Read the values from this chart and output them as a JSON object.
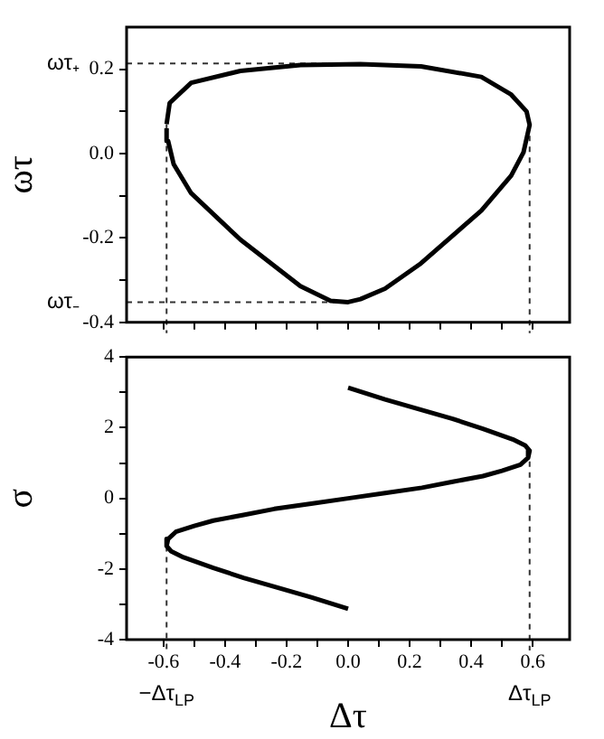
{
  "chart_data": [
    {
      "type": "line",
      "ylabel": "ωτ",
      "marker": "none",
      "tick_labels": "y",
      "xlim": [
        -0.72,
        0.72
      ],
      "ylim": [
        -0.4,
        0.3
      ],
      "xticks": [
        {
          "value": -0.6,
          "label": null
        },
        {
          "value": -0.5,
          "label": null
        },
        {
          "value": -0.4,
          "label": null
        },
        {
          "value": -0.3,
          "label": null
        },
        {
          "value": -0.2,
          "label": null
        },
        {
          "value": -0.1,
          "label": null
        },
        {
          "value": 0,
          "label": null
        },
        {
          "value": 0.1,
          "label": null
        },
        {
          "value": 0.2,
          "label": null
        },
        {
          "value": 0.3,
          "label": null
        },
        {
          "value": 0.4,
          "label": null
        },
        {
          "value": 0.5,
          "label": null
        },
        {
          "value": 0.6,
          "label": null
        }
      ],
      "yticks": [
        -0.4,
        {
          "value": -0.3,
          "label": null
        },
        -0.2,
        {
          "value": -0.1,
          "label": null
        },
        {
          "value": 0,
          "label": "0.0"
        },
        {
          "value": 0.1,
          "label": null
        },
        0.2
      ],
      "series": [
        {
          "color": "#000000",
          "x": [
            -0.59,
            -0.58,
            -0.51,
            -0.35,
            -0.155,
            0.04,
            0.237,
            0.433,
            0.53,
            0.58,
            0.59,
            0.57,
            0.53,
            0.433,
            0.237,
            0.12,
            0.04,
            0,
            -0.057,
            -0.155,
            -0.35,
            -0.51,
            -0.567,
            -0.585,
            -0.59
          ],
          "values": [
            0.07,
            0.12,
            0.168,
            0.196,
            0.21,
            0.212,
            0.207,
            0.182,
            0.14,
            0.1,
            0.068,
            0.003,
            -0.052,
            -0.135,
            -0.26,
            -0.32,
            -0.345,
            -0.352,
            -0.349,
            -0.314,
            -0.204,
            -0.094,
            -0.025,
            0.03,
            0.06
          ]
        }
      ],
      "ref_lines": [
        {
          "axis": "y",
          "value": 0.214,
          "label": "ωτ₊",
          "line_style": "dashed",
          "color": "#333333"
        },
        {
          "axis": "y",
          "value": -0.352,
          "label": "ωτ₋",
          "line_style": "dashed",
          "color": "#333333"
        },
        {
          "axis": "x",
          "value": -0.59,
          "line_style": "dashed",
          "color": "#333333"
        },
        {
          "axis": "x",
          "value": 0.59,
          "line_style": "dashed",
          "color": "#333333"
        }
      ]
    },
    {
      "type": "line",
      "xlabel": "Δτ",
      "ylabel": "σ",
      "marker": "none",
      "xlim": [
        -0.72,
        0.72
      ],
      "ylim": [
        -4,
        4
      ],
      "xticks": [
        -0.6,
        {
          "value": -0.5,
          "label": null
        },
        -0.4,
        {
          "value": -0.3,
          "label": null
        },
        -0.2,
        {
          "value": -0.1,
          "label": null
        },
        {
          "value": 0,
          "label": "0.0"
        },
        {
          "value": 0.1,
          "label": null
        },
        0.2,
        {
          "value": 0.3,
          "label": null
        },
        0.4,
        {
          "value": 0.5,
          "label": null
        },
        0.6
      ],
      "yticks": [
        -4,
        {
          "value": -3,
          "label": null
        },
        -2,
        {
          "value": -1,
          "label": null
        },
        0,
        {
          "value": 1,
          "label": null
        },
        2,
        {
          "value": 3,
          "label": null
        },
        4
      ],
      "series": [
        {
          "color": "#000000",
          "x": [
            0,
            0.12,
            0.24,
            0.34,
            0.438,
            0.535,
            0.575,
            0.59,
            0.585,
            0.56,
            0.5,
            0.438,
            0.34,
            0.24,
            0.12,
            0,
            -0.12,
            -0.24,
            -0.34,
            -0.438,
            -0.5,
            -0.56,
            -0.585,
            -0.59,
            -0.575,
            -0.535,
            -0.438,
            -0.34,
            -0.24,
            -0.12,
            0
          ],
          "values": [
            3.13,
            2.8,
            2.5,
            2.25,
            1.97,
            1.67,
            1.5,
            1.35,
            1.15,
            0.95,
            0.78,
            0.63,
            0.47,
            0.3,
            0.15,
            0,
            -0.15,
            -0.3,
            -0.47,
            -0.63,
            -0.78,
            -0.95,
            -1.15,
            -1.35,
            -1.5,
            -1.67,
            -1.97,
            -2.25,
            -2.5,
            -2.8,
            -3.13
          ]
        }
      ],
      "ref_lines": [
        {
          "axis": "x",
          "value": -0.59,
          "label": "−Δτ$_{LP}$",
          "line_style": "dashed",
          "color": "#333333"
        },
        {
          "axis": "x",
          "value": 0.59,
          "label": "Δτ$_{LP}$",
          "line_style": "dashed",
          "color": "#333333"
        }
      ]
    }
  ]
}
